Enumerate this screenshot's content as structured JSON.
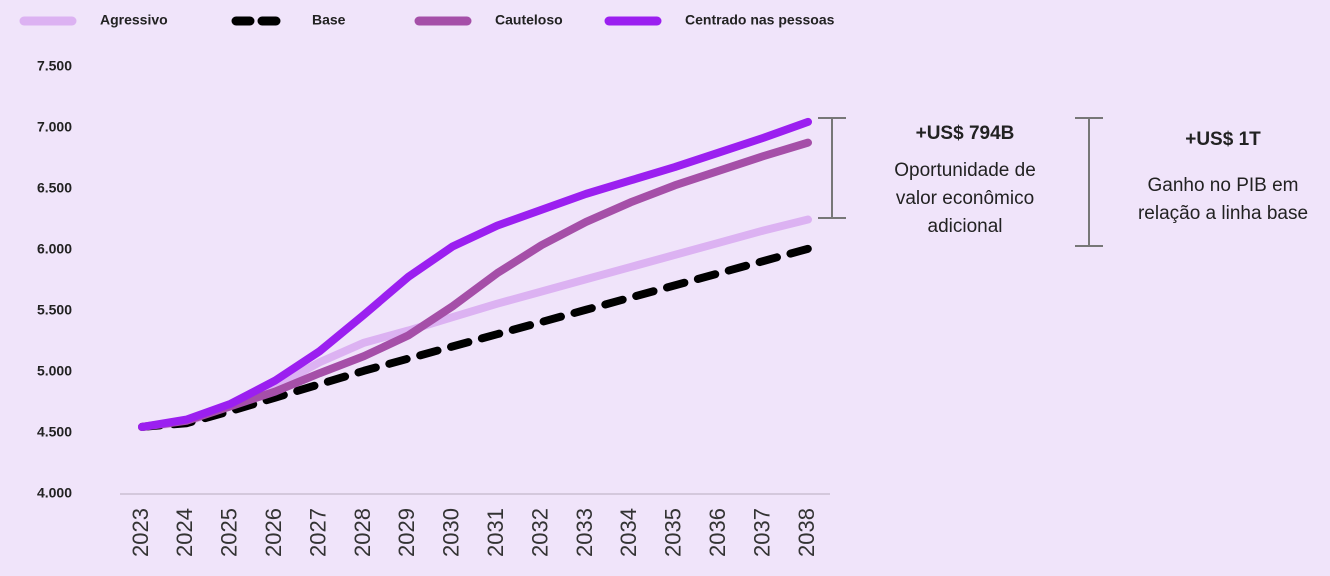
{
  "chart_data": {
    "type": "line",
    "categories": [
      "2023",
      "2024",
      "2025",
      "2026",
      "2027",
      "2028",
      "2029",
      "2030",
      "2031",
      "2032",
      "2033",
      "2034",
      "2035",
      "2036",
      "2037",
      "2038"
    ],
    "series": [
      {
        "name": "Agressivo",
        "color": "#dcb2f2",
        "style": "solid",
        "values": [
          4550,
          4590,
          4720,
          4880,
          5080,
          5240,
          5340,
          5450,
          5560,
          5660,
          5760,
          5860,
          5960,
          6060,
          6160,
          6250
        ]
      },
      {
        "name": "Base",
        "color": "#000000",
        "style": "dashed",
        "values": [
          4550,
          4580,
          4680,
          4790,
          4900,
          5010,
          5110,
          5210,
          5310,
          5410,
          5510,
          5610,
          5710,
          5810,
          5910,
          6010
        ]
      },
      {
        "name": "Cauteloso",
        "color": "#a54fa8",
        "style": "solid",
        "values": [
          4550,
          4600,
          4720,
          4840,
          4990,
          5130,
          5300,
          5540,
          5810,
          6040,
          6230,
          6390,
          6530,
          6650,
          6770,
          6880
        ]
      },
      {
        "name": "Centrado nas pessoas",
        "color": "#9b1ff0",
        "style": "solid",
        "values": [
          4550,
          4610,
          4740,
          4930,
          5170,
          5470,
          5780,
          6030,
          6200,
          6330,
          6460,
          6570,
          6680,
          6800,
          6920,
          7050
        ]
      }
    ],
    "ylim": [
      4000,
      7500
    ],
    "yticks": [
      {
        "value": 4000,
        "label": "4.000"
      },
      {
        "value": 4500,
        "label": "4.500"
      },
      {
        "value": 5000,
        "label": "5.000"
      },
      {
        "value": 5500,
        "label": "5.500"
      },
      {
        "value": 6000,
        "label": "6.000"
      },
      {
        "value": 6500,
        "label": "6.500"
      },
      {
        "value": 7000,
        "label": "7.000"
      },
      {
        "value": 7500,
        "label": "7.500"
      }
    ],
    "grid": false,
    "legend": "top",
    "annotations": [
      {
        "title": "+US$ 794B",
        "lines": [
          "Oportunidade de",
          "valor econômico",
          "adicional"
        ]
      },
      {
        "title": "+US$ 1T",
        "lines": [
          "Ganho no PIB em",
          "relação a linha base"
        ]
      }
    ]
  }
}
